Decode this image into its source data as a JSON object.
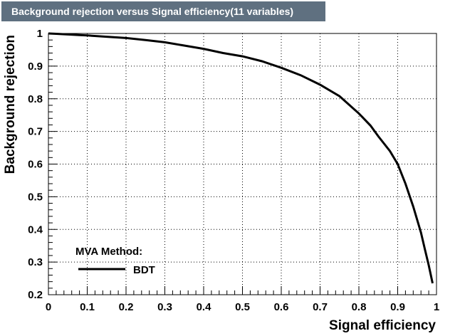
{
  "chart_data": {
    "type": "line",
    "title": "Background rejection versus Signal efficiency(11 variables)",
    "xlabel": "Signal efficiency",
    "ylabel": "Background rejection",
    "xlim": [
      0,
      1
    ],
    "ylim": [
      0.2,
      1
    ],
    "xticks": [
      0,
      0.1,
      0.2,
      0.3,
      0.4,
      0.5,
      0.6,
      0.7,
      0.8,
      0.9,
      1
    ],
    "xtick_labels": [
      "0",
      "0.1",
      "0.2",
      "0.3",
      "0.4",
      "0.5",
      "0.6",
      "0.7",
      "0.8",
      "0.9",
      "1"
    ],
    "yticks": [
      0.2,
      0.3,
      0.4,
      0.5,
      0.6,
      0.7,
      0.8,
      0.9,
      1
    ],
    "ytick_labels": [
      "0.2",
      "0.3",
      "0.4",
      "0.5",
      "0.6",
      "0.7",
      "0.8",
      "0.9",
      "1"
    ],
    "grid": true,
    "legend": {
      "title": "MVA Method:",
      "position": "bottom-left",
      "entries": [
        "BDT"
      ]
    },
    "series": [
      {
        "name": "BDT",
        "color": "#000000",
        "x": [
          0.0,
          0.02,
          0.05,
          0.08,
          0.1,
          0.15,
          0.2,
          0.25,
          0.3,
          0.35,
          0.4,
          0.45,
          0.5,
          0.55,
          0.6,
          0.65,
          0.7,
          0.75,
          0.8,
          0.83,
          0.85,
          0.88,
          0.9,
          0.92,
          0.94,
          0.96,
          0.97,
          0.98,
          0.99
        ],
        "y": [
          1.0,
          0.999,
          0.997,
          0.995,
          0.994,
          0.99,
          0.986,
          0.98,
          0.973,
          0.963,
          0.953,
          0.94,
          0.93,
          0.915,
          0.895,
          0.872,
          0.843,
          0.808,
          0.755,
          0.718,
          0.685,
          0.64,
          0.6,
          0.54,
          0.47,
          0.39,
          0.34,
          0.29,
          0.235
        ]
      }
    ]
  }
}
